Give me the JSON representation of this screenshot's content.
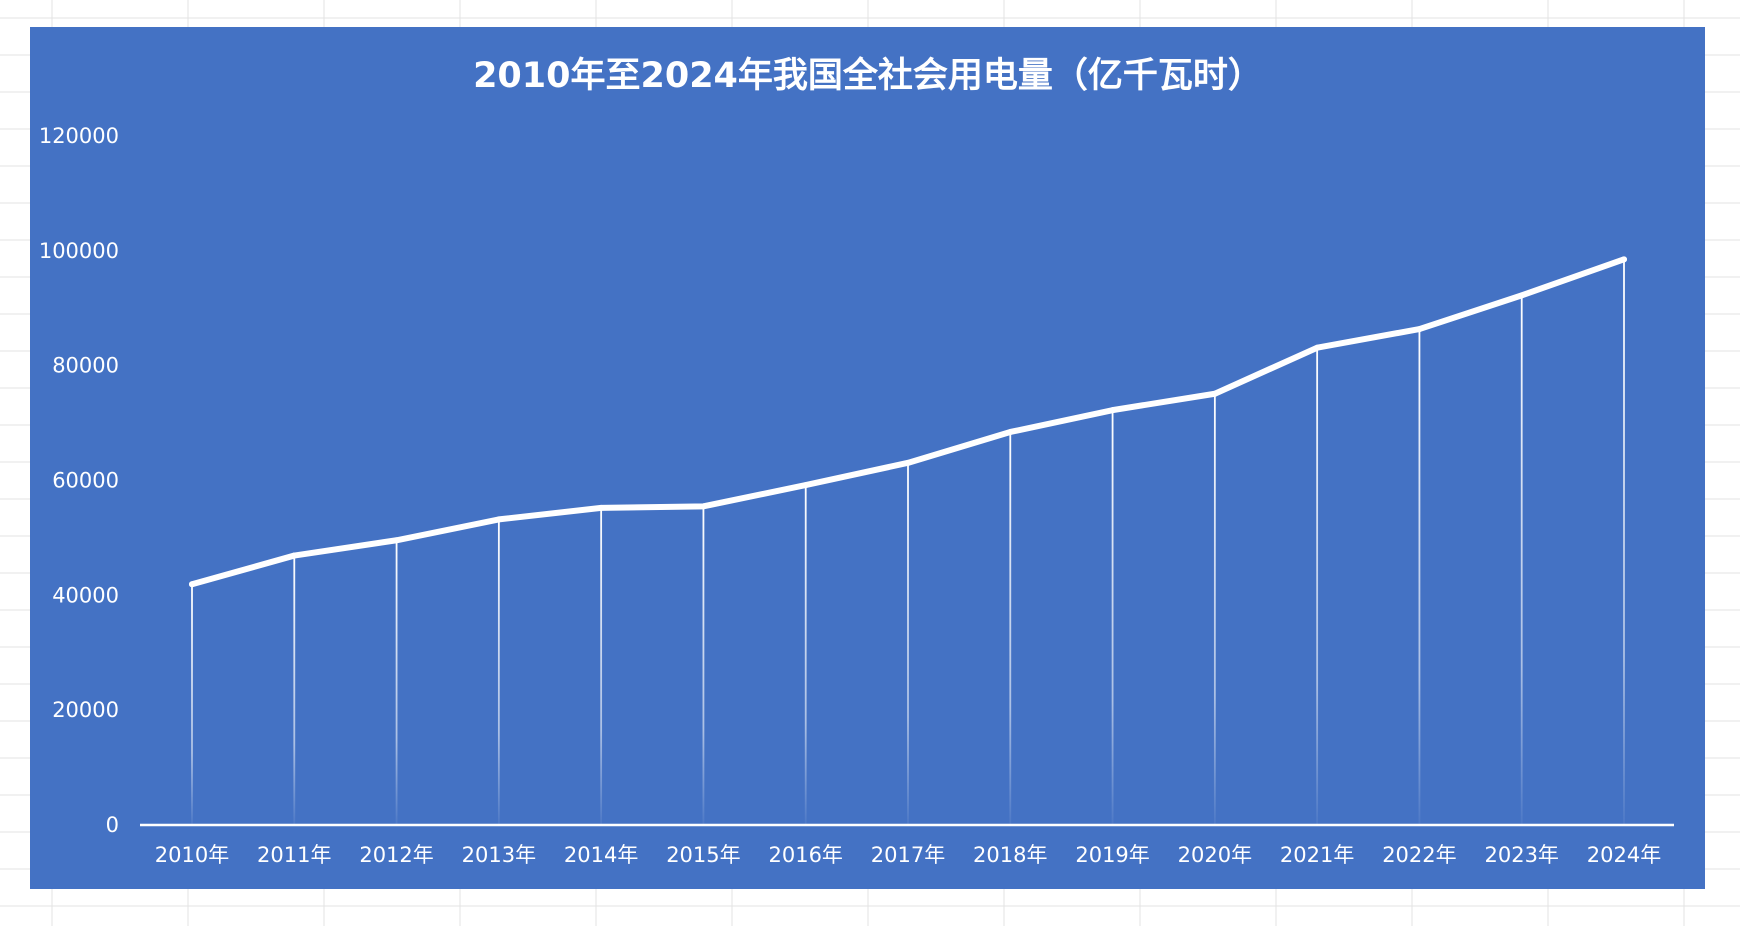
{
  "chart_data": {
    "type": "line",
    "title": "2010年至2024年我国全社会用电量（亿千瓦时）",
    "xlabel": "",
    "ylabel": "",
    "categories": [
      "2010年",
      "2011年",
      "2012年",
      "2013年",
      "2014年",
      "2015年",
      "2016年",
      "2017年",
      "2018年",
      "2019年",
      "2020年",
      "2021年",
      "2022年",
      "2023年",
      "2024年"
    ],
    "series": [
      {
        "values": [
          41923,
          46928,
          49591,
          53223,
          55233,
          55500,
          59198,
          63077,
          68449,
          72255,
          75110,
          83128,
          86372,
          92241,
          98521
        ]
      }
    ],
    "ylim": [
      0,
      120000
    ],
    "yticks": [
      0,
      20000,
      40000,
      60000,
      80000,
      100000,
      120000
    ],
    "grid": false,
    "legend": "none",
    "drop_lines": true,
    "colors": {
      "background": "#4472c4",
      "line": "#ffffff",
      "text": "#ffffff"
    }
  }
}
